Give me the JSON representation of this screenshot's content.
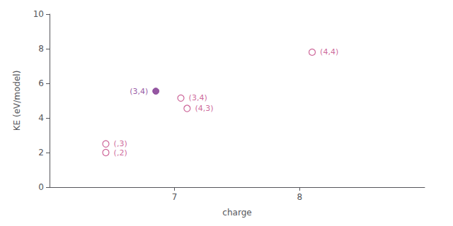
{
  "chart_data": {
    "type": "scatter",
    "xlabel": "charge",
    "ylabel": "KE (eV/model)",
    "xlim": [
      6.0,
      9.0
    ],
    "ylim": [
      0,
      10
    ],
    "xticks": [
      7,
      8
    ],
    "yticks": [
      0,
      2,
      4,
      6,
      8,
      10
    ],
    "grid": false,
    "series": [
      {
        "color": "#c04080",
        "marker": "open",
        "x": [
          8.1,
          7.05,
          7.1,
          6.45,
          6.45
        ],
        "values": [
          7.8,
          5.15,
          4.55,
          2.5,
          2.0
        ],
        "labels": [
          "(4,4)",
          "(3,4)",
          "(4,3)",
          "(,3)",
          "(,2)"
        ]
      },
      {
        "color": "#7b2d8b",
        "marker": "filled",
        "x": [
          6.85
        ],
        "values": [
          5.55
        ],
        "labels": [
          "(3,4)"
        ]
      }
    ]
  }
}
